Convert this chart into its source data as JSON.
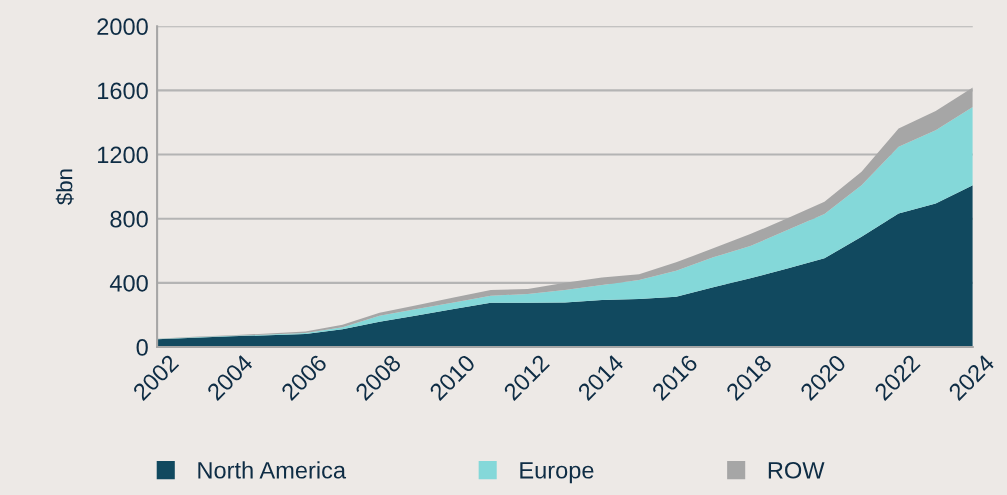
{
  "chart_data": {
    "type": "area",
    "stacked": true,
    "ylabel": "$bn",
    "x": [
      2002,
      2003,
      2004,
      2005,
      2006,
      2007,
      2008,
      2009,
      2010,
      2011,
      2012,
      2013,
      2014,
      2015,
      2016,
      2017,
      2018,
      2019,
      2020,
      2021,
      2022,
      2023,
      2024
    ],
    "series": [
      {
        "name": "North America",
        "color": "#11495f",
        "values": [
          48,
          58,
          67,
          73,
          81,
          110,
          158,
          197,
          237,
          276,
          276,
          278,
          293,
          299,
          314,
          372,
          428,
          490,
          553,
          688,
          833,
          895,
          1009
        ]
      },
      {
        "name": "Europe",
        "color": "#84d8d9",
        "values": [
          2,
          3,
          3,
          5,
          7,
          13,
          37,
          40,
          41,
          44,
          54,
          77,
          93,
          118,
          162,
          187,
          201,
          239,
          276,
          321,
          415,
          457,
          488
        ]
      },
      {
        "name": "ROW",
        "color": "#a6a6a6",
        "values": [
          2,
          3,
          4,
          6,
          8,
          16,
          19,
          24,
          30,
          35,
          31,
          45,
          48,
          36,
          52,
          56,
          75,
          73,
          76,
          83,
          114,
          120,
          121
        ]
      }
    ],
    "xlim": [
      2002,
      2024
    ],
    "xticks": [
      2002,
      2004,
      2006,
      2008,
      2010,
      2012,
      2014,
      2016,
      2018,
      2020,
      2022,
      2024
    ],
    "ylim": [
      0,
      2000
    ],
    "yticks": [
      0,
      400,
      800,
      1200,
      1600,
      2000
    ],
    "grid": "y",
    "legend": "bottom"
  }
}
